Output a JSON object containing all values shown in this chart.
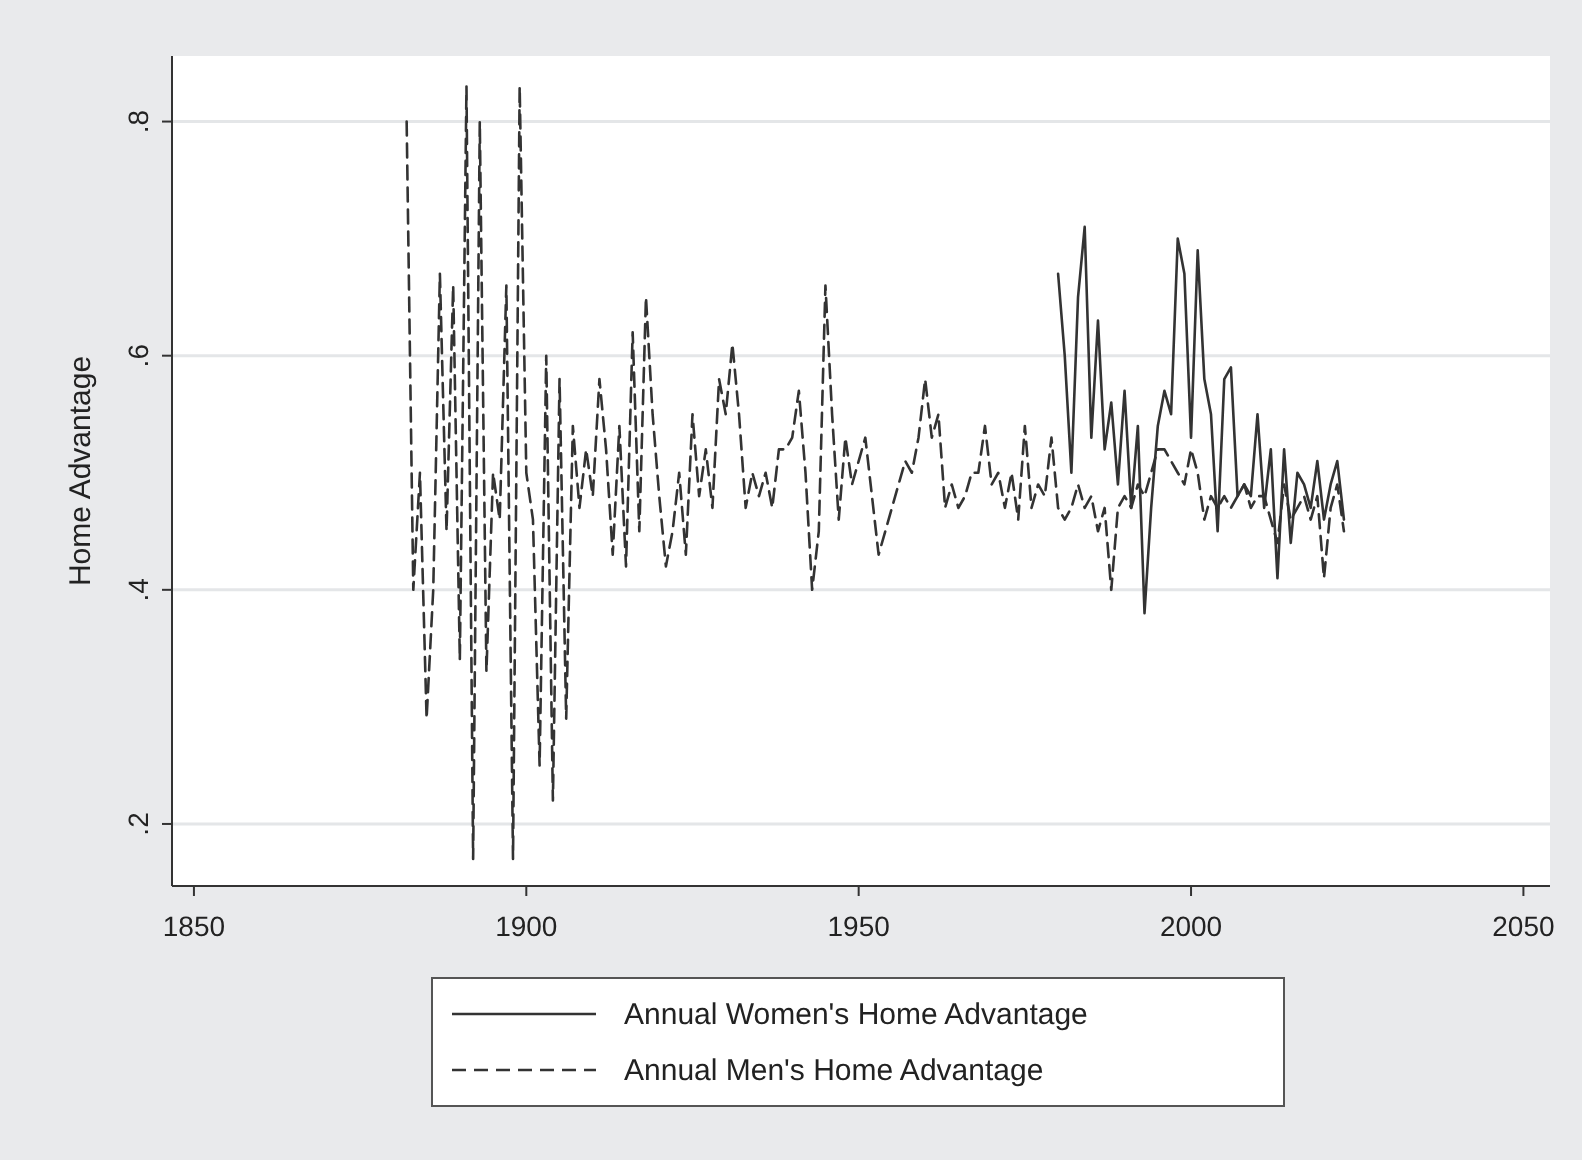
{
  "chart_data": {
    "type": "line",
    "ylabel": "Home Advantage",
    "xlim": [
      1846.7,
      2054
    ],
    "xticks": [
      1850,
      1900,
      1950,
      2000,
      2050
    ],
    "ylim": [
      0.147,
      0.856
    ],
    "yticks": [
      {
        "value": 0.2,
        "label": ".2"
      },
      {
        "value": 0.4,
        "label": ".4"
      },
      {
        "value": 0.6,
        "label": ".6"
      },
      {
        "value": 0.8,
        "label": ".8"
      }
    ],
    "grid": "y",
    "legend": "bottom",
    "marker": "none",
    "series": [
      {
        "name": "Annual Women's Home Advantage",
        "color": "#333333",
        "line_style": "solid",
        "x": [
          1980,
          1981,
          1982,
          1983,
          1984,
          1985,
          1986,
          1987,
          1988,
          1989,
          1990,
          1991,
          1992,
          1993,
          1994,
          1995,
          1996,
          1997,
          1998,
          1999,
          2000,
          2001,
          2002,
          2003,
          2004,
          2005,
          2006,
          2007,
          2008,
          2009,
          2010,
          2011,
          2012,
          2013,
          2014,
          2015,
          2016,
          2017,
          2018,
          2019,
          2020,
          2021,
          2022,
          2023
        ],
        "values": [
          0.67,
          0.6,
          0.5,
          0.65,
          0.71,
          0.53,
          0.63,
          0.52,
          0.56,
          0.49,
          0.57,
          0.47,
          0.54,
          0.38,
          0.47,
          0.54,
          0.57,
          0.55,
          0.7,
          0.67,
          0.53,
          0.69,
          0.58,
          0.55,
          0.45,
          0.58,
          0.59,
          0.48,
          0.49,
          0.48,
          0.55,
          0.47,
          0.52,
          0.41,
          0.52,
          0.44,
          0.5,
          0.49,
          0.47,
          0.51,
          0.46,
          0.49,
          0.51,
          0.46
        ]
      },
      {
        "name": "Annual Men's Home Advantage",
        "color": "#333333",
        "line_style": "dashed",
        "x": [
          1882,
          1883,
          1884,
          1885,
          1886,
          1887,
          1888,
          1889,
          1890,
          1891,
          1892,
          1893,
          1894,
          1895,
          1896,
          1897,
          1898,
          1899,
          1900,
          1901,
          1902,
          1903,
          1904,
          1905,
          1906,
          1907,
          1908,
          1909,
          1910,
          1911,
          1912,
          1913,
          1914,
          1915,
          1916,
          1917,
          1918,
          1919,
          1920,
          1921,
          1922,
          1923,
          1924,
          1925,
          1926,
          1927,
          1928,
          1929,
          1930,
          1931,
          1932,
          1933,
          1934,
          1935,
          1936,
          1937,
          1938,
          1939,
          1940,
          1941,
          1942,
          1943,
          1944,
          1945,
          1946,
          1947,
          1948,
          1949,
          1950,
          1951,
          1952,
          1953,
          1954,
          1955,
          1956,
          1957,
          1958,
          1959,
          1960,
          1961,
          1962,
          1963,
          1964,
          1965,
          1966,
          1967,
          1968,
          1969,
          1970,
          1971,
          1972,
          1973,
          1974,
          1975,
          1976,
          1977,
          1978,
          1979,
          1980,
          1981,
          1982,
          1983,
          1984,
          1985,
          1986,
          1987,
          1988,
          1989,
          1990,
          1991,
          1992,
          1993,
          1994,
          1995,
          1996,
          1997,
          1998,
          1999,
          2000,
          2001,
          2002,
          2003,
          2004,
          2005,
          2006,
          2007,
          2008,
          2009,
          2010,
          2011,
          2012,
          2013,
          2014,
          2015,
          2016,
          2017,
          2018,
          2019,
          2020,
          2021,
          2022,
          2023
        ],
        "values": [
          0.8,
          0.4,
          0.5,
          0.29,
          0.4,
          0.67,
          0.45,
          0.66,
          0.34,
          0.83,
          0.17,
          0.8,
          0.33,
          0.5,
          0.46,
          0.66,
          0.17,
          0.83,
          0.5,
          0.46,
          0.25,
          0.6,
          0.22,
          0.58,
          0.29,
          0.54,
          0.47,
          0.52,
          0.48,
          0.58,
          0.52,
          0.43,
          0.54,
          0.42,
          0.62,
          0.45,
          0.65,
          0.55,
          0.48,
          0.42,
          0.45,
          0.5,
          0.43,
          0.55,
          0.48,
          0.52,
          0.47,
          0.58,
          0.55,
          0.61,
          0.55,
          0.47,
          0.5,
          0.48,
          0.5,
          0.47,
          0.52,
          0.52,
          0.53,
          0.57,
          0.5,
          0.4,
          0.45,
          0.66,
          0.55,
          0.46,
          0.53,
          0.49,
          0.51,
          0.53,
          0.48,
          0.43,
          0.45,
          0.47,
          0.49,
          0.51,
          0.5,
          0.53,
          0.58,
          0.53,
          0.55,
          0.47,
          0.49,
          0.47,
          0.48,
          0.5,
          0.5,
          0.54,
          0.49,
          0.5,
          0.47,
          0.5,
          0.46,
          0.54,
          0.47,
          0.49,
          0.48,
          0.53,
          0.47,
          0.46,
          0.47,
          0.49,
          0.47,
          0.48,
          0.45,
          0.47,
          0.4,
          0.47,
          0.48,
          0.47,
          0.49,
          0.48,
          0.5,
          0.52,
          0.52,
          0.51,
          0.5,
          0.49,
          0.52,
          0.5,
          0.46,
          0.48,
          0.47,
          0.48,
          0.47,
          0.48,
          0.49,
          0.47,
          0.48,
          0.48,
          0.46,
          0.44,
          0.49,
          0.46,
          0.47,
          0.48,
          0.46,
          0.48,
          0.41,
          0.47,
          0.49,
          0.45
        ]
      }
    ]
  }
}
